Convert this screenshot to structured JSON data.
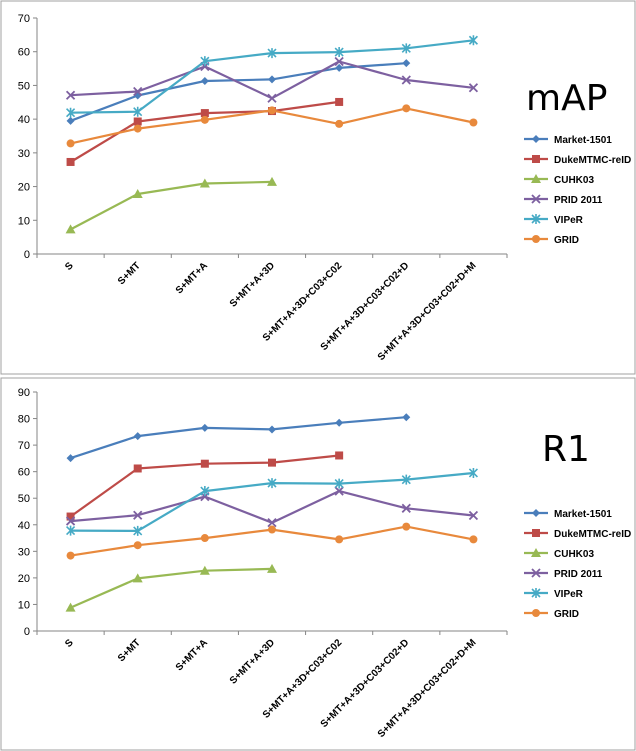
{
  "chart_data": [
    {
      "type": "line",
      "title": "mAP",
      "categories": [
        "S",
        "S+MT",
        "S+MT+A",
        "S+MT+A+3D",
        "S+MT+A+3D+C03+C02",
        "S+MT+A+3D+C03+C02+D",
        "S+MT+A+3D+C03+C02+D+M"
      ],
      "ylim": [
        0,
        70
      ],
      "yticks": [
        0,
        10,
        20,
        30,
        40,
        50,
        60,
        70
      ],
      "grid": false,
      "legend": "right",
      "series": [
        {
          "name": "Market-1501",
          "color": "#4a7ebb",
          "marker": "diamond",
          "values": [
            39.5,
            47.0,
            51.3,
            51.8,
            55.2,
            56.6,
            null
          ]
        },
        {
          "name": "DukeMTMC-reID",
          "color": "#be4b48",
          "marker": "square",
          "values": [
            27.3,
            39.3,
            41.8,
            42.4,
            45.1,
            null,
            null
          ]
        },
        {
          "name": "CUHK03",
          "color": "#98b954",
          "marker": "triangle",
          "values": [
            7.3,
            17.8,
            20.9,
            21.4,
            null,
            null,
            null
          ]
        },
        {
          "name": "PRID 2011",
          "color": "#7d60a0",
          "marker": "x",
          "values": [
            47.1,
            48.2,
            55.6,
            46.2,
            57.1,
            51.6,
            49.3
          ]
        },
        {
          "name": "VIPeR",
          "color": "#46aac5",
          "marker": "star",
          "values": [
            41.9,
            42.2,
            57.2,
            59.6,
            59.9,
            61.0,
            63.4
          ]
        },
        {
          "name": "GRID",
          "color": "#e8893c",
          "marker": "circle",
          "values": [
            32.8,
            37.2,
            39.8,
            42.6,
            38.6,
            43.2,
            39.0
          ]
        }
      ]
    },
    {
      "type": "line",
      "title": "R1",
      "categories": [
        "S",
        "S+MT",
        "S+MT+A",
        "S+MT+A+3D",
        "S+MT+A+3D+C03+C02",
        "S+MT+A+3D+C03+C02+D",
        "S+MT+A+3D+C03+C02+D+M"
      ],
      "ylim": [
        0,
        90
      ],
      "yticks": [
        0,
        10,
        20,
        30,
        40,
        50,
        60,
        70,
        80,
        90
      ],
      "grid": false,
      "legend": "right",
      "series": [
        {
          "name": "Market-1501",
          "color": "#4a7ebb",
          "marker": "diamond",
          "values": [
            65.1,
            73.4,
            76.5,
            75.9,
            78.4,
            80.5,
            null
          ]
        },
        {
          "name": "DukeMTMC-reID",
          "color": "#be4b48",
          "marker": "square",
          "values": [
            43.1,
            61.2,
            63.0,
            63.4,
            66.1,
            null,
            null
          ]
        },
        {
          "name": "CUHK03",
          "color": "#98b954",
          "marker": "triangle",
          "values": [
            8.8,
            19.8,
            22.7,
            23.4,
            null,
            null,
            null
          ]
        },
        {
          "name": "PRID 2011",
          "color": "#7d60a0",
          "marker": "x",
          "values": [
            41.4,
            43.6,
            50.6,
            40.8,
            52.7,
            46.2,
            43.5
          ]
        },
        {
          "name": "VIPeR",
          "color": "#46aac5",
          "marker": "star",
          "values": [
            37.8,
            37.7,
            52.7,
            55.7,
            55.5,
            57.0,
            59.5
          ]
        },
        {
          "name": "GRID",
          "color": "#e8893c",
          "marker": "circle",
          "values": [
            28.4,
            32.3,
            35.0,
            38.2,
            34.5,
            39.3,
            34.5
          ]
        }
      ]
    }
  ]
}
